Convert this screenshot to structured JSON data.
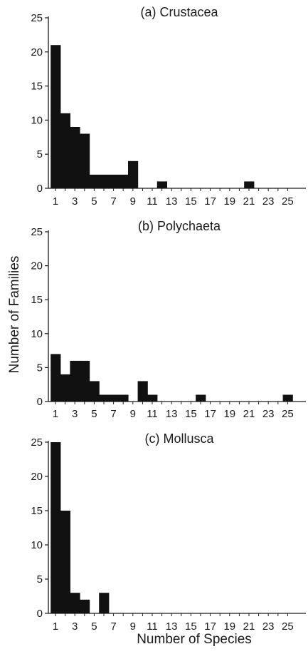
{
  "figure": {
    "ylabel": "Number of Families",
    "xlabel": "Number of Species"
  },
  "chart_data": [
    {
      "type": "bar",
      "title": "(a) Crustacea",
      "x": [
        1,
        2,
        3,
        4,
        5,
        6,
        7,
        8,
        9,
        10,
        11,
        12,
        13,
        14,
        15,
        16,
        17,
        18,
        19,
        20,
        21,
        22,
        23,
        24,
        25
      ],
      "values": [
        21,
        11,
        9,
        8,
        2,
        2,
        2,
        2,
        4,
        0,
        0,
        1,
        0,
        0,
        0,
        0,
        0,
        0,
        0,
        0,
        1,
        0,
        0,
        0,
        0
      ],
      "xticks": [
        1,
        3,
        5,
        7,
        9,
        11,
        13,
        15,
        17,
        19,
        21,
        23,
        25
      ],
      "yticks": [
        0,
        5,
        10,
        15,
        20,
        25
      ],
      "xlim": [
        0.5,
        25.5
      ],
      "ylim": [
        0,
        25
      ],
      "grid": false
    },
    {
      "type": "bar",
      "title": "(b) Polychaeta",
      "x": [
        1,
        2,
        3,
        4,
        5,
        6,
        7,
        8,
        9,
        10,
        11,
        12,
        13,
        14,
        15,
        16,
        17,
        18,
        19,
        20,
        21,
        22,
        23,
        24,
        25
      ],
      "values": [
        7,
        4,
        6,
        6,
        3,
        1,
        1,
        1,
        0,
        3,
        1,
        0,
        0,
        0,
        0,
        1,
        0,
        0,
        0,
        0,
        0,
        0,
        0,
        0,
        1
      ],
      "xticks": [
        1,
        3,
        5,
        7,
        9,
        11,
        13,
        15,
        17,
        19,
        21,
        23,
        25
      ],
      "yticks": [
        0,
        5,
        10,
        15,
        20,
        25
      ],
      "xlim": [
        0.5,
        25.5
      ],
      "ylim": [
        0,
        25
      ],
      "grid": false
    },
    {
      "type": "bar",
      "title": "(c) Mollusca",
      "x": [
        1,
        2,
        3,
        4,
        5,
        6,
        7,
        8,
        9,
        10,
        11,
        12,
        13,
        14,
        15,
        16,
        17,
        18,
        19,
        20,
        21,
        22,
        23,
        24,
        25
      ],
      "values": [
        25,
        15,
        3,
        2,
        0,
        3,
        0,
        0,
        0,
        0,
        0,
        0,
        0,
        0,
        0,
        0,
        0,
        0,
        0,
        0,
        0,
        0,
        0,
        0,
        0
      ],
      "xticks": [
        1,
        3,
        5,
        7,
        9,
        11,
        13,
        15,
        17,
        19,
        21,
        23,
        25
      ],
      "yticks": [
        0,
        5,
        10,
        15,
        20,
        25
      ],
      "xlim": [
        0.5,
        25.5
      ],
      "ylim": [
        0,
        25
      ],
      "grid": false
    }
  ]
}
